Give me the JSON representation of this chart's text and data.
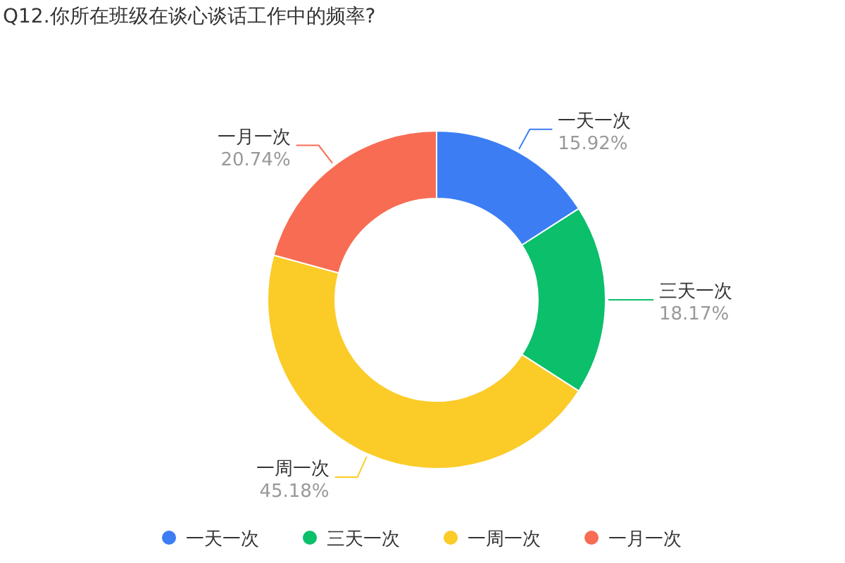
{
  "chart_data": {
    "type": "donut",
    "title": "Q12.你所在班级在谈心谈话工作中的频率?",
    "categories": [
      "一天一次",
      "三天一次",
      "一周一次",
      "一月一次"
    ],
    "values": [
      15.92,
      18.17,
      45.18,
      20.74
    ],
    "value_labels": [
      "15.92%",
      "18.17%",
      "45.18%",
      "20.74%"
    ],
    "colors": [
      "#3c7df3",
      "#0bbf6b",
      "#fbcb28",
      "#f76c53"
    ],
    "legend": "bottom"
  }
}
